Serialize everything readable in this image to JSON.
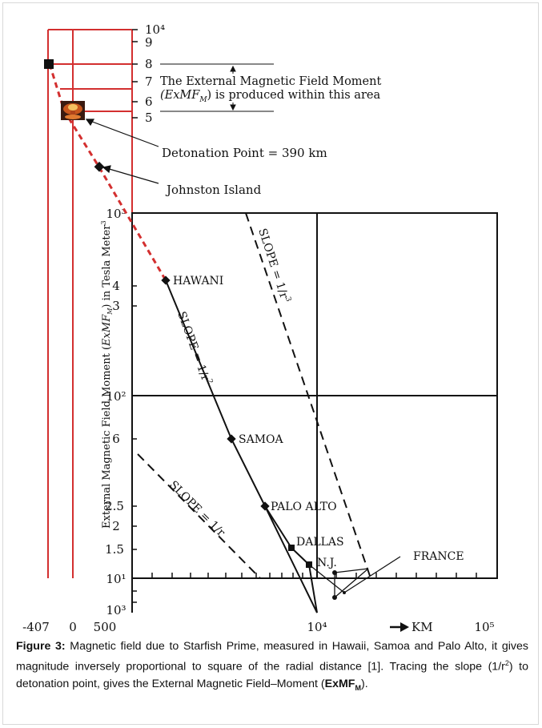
{
  "chart_data": {
    "type": "line",
    "title": "",
    "ylabel_parts": [
      "External Magnetic Field Moment (",
      "ExMF",
      "M",
      ") in Tesla Meter",
      "3"
    ],
    "x_axis": {
      "scale": "log",
      "unit": "km",
      "unit_label": "KM",
      "tick_labels": [
        "-407",
        "0",
        "500",
        "10⁴",
        "10⁵"
      ]
    },
    "y_axis": {
      "scale": "log",
      "top_scale_labels": [
        "10⁴",
        "9",
        "8",
        "7",
        "6",
        "5"
      ],
      "inner_scale_labels": [
        "10³",
        "4",
        "3",
        "10²",
        "6",
        "2.5",
        "2",
        "1.5",
        "10¹",
        "10³"
      ]
    },
    "points": [
      {
        "label": "HAWANI",
        "y": 3.0
      },
      {
        "label": "SAMOA",
        "y": 6.0
      },
      {
        "label": "PALO ALTO",
        "y": 2.5
      },
      {
        "label": "DALLAS",
        "y": 1.5
      },
      {
        "label": "N.J.",
        "y": 1.2
      },
      {
        "label": "FRANCE",
        "y": 1.0
      },
      {
        "label": "Johnston Island",
        "y": null
      },
      {
        "label": "Detonation Point = 390 km",
        "y": 8.0
      }
    ],
    "slope_labels": [
      {
        "text": "SLOPE = 1/r",
        "exp": "2"
      },
      {
        "text": "SLOPE = 1/r",
        "exp": "3"
      },
      {
        "text": "SLOPE = 1/r",
        "exp": ""
      }
    ],
    "annotation_lines": [
      "The External Magnetic Field Moment",
      "(ExMF",
      "M",
      ") is produced within this area"
    ]
  },
  "caption": {
    "label": "Figure 3:",
    "text_1": " Magnetic field due to Starfish Prime, measured in Hawaii, Samoa and Palo Alto, it gives magnitude inversely proportional to square of the radial distance [1]. Tracing the slope (1/r",
    "sup": "2",
    "text_2": ") to detonation point, gives the External Magnetic Field–Moment (",
    "bold": "ExMF",
    "sub": "M",
    "text_3": ")."
  },
  "colors": {
    "red_grid": "#d32f2f",
    "black": "#111111",
    "explosion": "#c8561c"
  }
}
